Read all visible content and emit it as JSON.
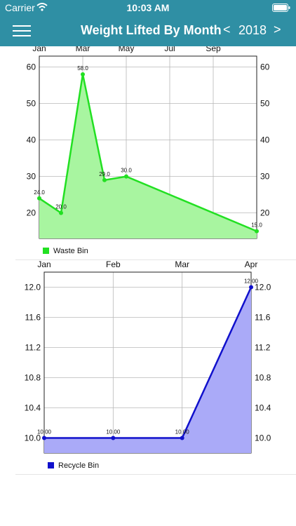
{
  "status": {
    "carrier": "Carrier",
    "time": "10:03 AM"
  },
  "nav": {
    "title": "Weight Lifted By Month",
    "prev": "<",
    "year": "2018",
    "next": ">"
  },
  "colors": {
    "nav_bg": "#2f8fa4",
    "waste_line": "#22e022",
    "waste_fill": "#a8f5a0",
    "recycle_line": "#1010cc",
    "recycle_fill": "#aaaaf8"
  },
  "chart_data": [
    {
      "type": "area",
      "x_ticks": [
        "Jan",
        "Mar",
        "May",
        "Jul",
        "Sep"
      ],
      "x": [
        "Jan",
        "Feb",
        "Mar",
        "Apr",
        "May",
        "Nov"
      ],
      "series": [
        {
          "name": "Waste Bin",
          "values": [
            24.0,
            20.0,
            58.0,
            29.0,
            30.0,
            15.0
          ]
        }
      ],
      "value_labels": [
        "24.0",
        "20.0",
        "58.0",
        "29.0",
        "30.0",
        "15.0"
      ],
      "y_ticks": [
        "20",
        "30",
        "40",
        "50",
        "60"
      ],
      "ylim": [
        13,
        63
      ],
      "grid": true,
      "legend": "bottom-left"
    },
    {
      "type": "area",
      "x_ticks": [
        "Jan",
        "Feb",
        "Mar",
        "Apr"
      ],
      "x": [
        "Jan",
        "Feb",
        "Mar",
        "Apr"
      ],
      "series": [
        {
          "name": "Recycle Bin",
          "values": [
            10.0,
            10.0,
            10.0,
            12.0
          ]
        }
      ],
      "value_labels": [
        "10.00",
        "10.00",
        "10.00",
        "12.00"
      ],
      "y_ticks": [
        "10.0",
        "10.4",
        "10.8",
        "11.2",
        "11.6",
        "12.0"
      ],
      "ylim": [
        9.8,
        12.2
      ],
      "grid": true,
      "legend": "bottom-left"
    }
  ]
}
